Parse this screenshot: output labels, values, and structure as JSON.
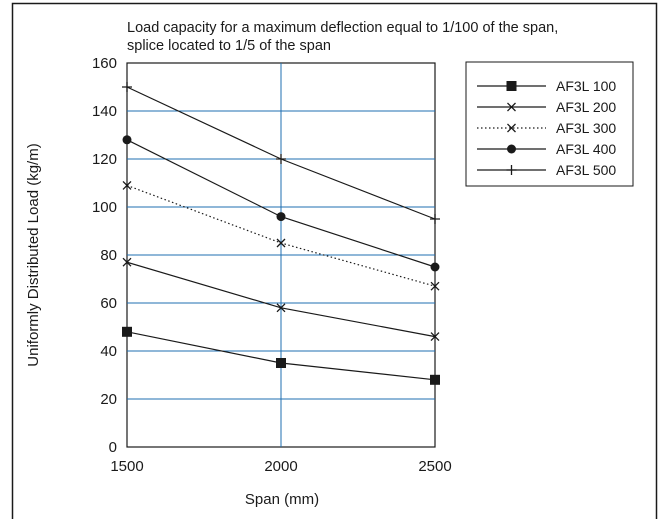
{
  "chart_data": {
    "type": "line",
    "title": "Load capacity for a maximum deflection equal to 1/100 of the span,",
    "subtitle": "splice located to 1/5 of the span",
    "xlabel": "Span (mm)",
    "ylabel": "Uniformly Distributed Load (kg/m)",
    "x": [
      1500,
      2000,
      2500
    ],
    "x_ticks": [
      "1500",
      "2000",
      "2500"
    ],
    "y_ticks": [
      "0",
      "20",
      "40",
      "60",
      "80",
      "100",
      "120",
      "140",
      "160"
    ],
    "xlim": [
      1500,
      2500
    ],
    "ylim": [
      0,
      160
    ],
    "grid": true,
    "legend_position": "top-right",
    "grid_color": "#1f6fb2",
    "series": [
      {
        "name": "AF3L 100",
        "values": [
          48,
          35,
          28
        ],
        "marker": "square",
        "line": "solid"
      },
      {
        "name": "AF3L 200",
        "values": [
          77,
          58,
          46
        ],
        "marker": "x",
        "line": "solid"
      },
      {
        "name": "AF3L 300",
        "values": [
          109,
          85,
          67
        ],
        "marker": "x",
        "line": "dotted"
      },
      {
        "name": "AF3L 400",
        "values": [
          128,
          96,
          75
        ],
        "marker": "circle",
        "line": "solid"
      },
      {
        "name": "AF3L 500",
        "values": [
          150,
          120,
          95
        ],
        "marker": "plus",
        "line": "solid"
      }
    ]
  }
}
